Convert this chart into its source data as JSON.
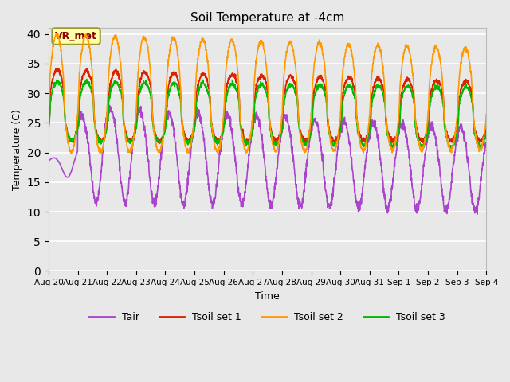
{
  "title": "Soil Temperature at -4cm",
  "xlabel": "Time",
  "ylabel": "Temperature (C)",
  "ylim": [
    0,
    41
  ],
  "yticks": [
    0,
    5,
    10,
    15,
    20,
    25,
    30,
    35,
    40
  ],
  "num_days": 15,
  "colors": {
    "Tair": "#aa44cc",
    "Tsoil_set1": "#dd2200",
    "Tsoil_set2": "#ff9900",
    "Tsoil_set3": "#00bb00"
  },
  "legend_labels": [
    "Tair",
    "Tsoil set 1",
    "Tsoil set 2",
    "Tsoil set 3"
  ],
  "annotation_text": "VR_met",
  "background_color": "#e8e8e8",
  "grid_color": "#ffffff",
  "points_per_day": 144
}
